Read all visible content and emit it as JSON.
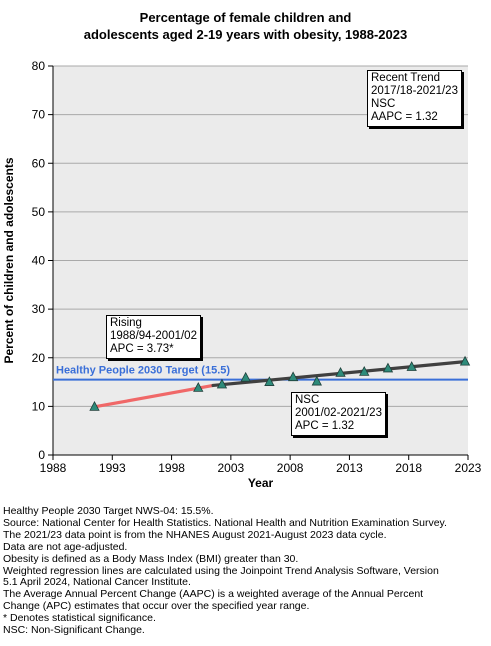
{
  "chart_data": {
    "type": "line",
    "title": "Percentage of female children and adolescents aged 2-19 years with obesity, 1988-2023",
    "title_lines": [
      "Percentage of female children and",
      "adolescents aged 2-19 years with obesity, 1988-2023"
    ],
    "xlabel": "Year",
    "ylabel": "Percent of children and adolescents",
    "xlim": [
      1988,
      2023
    ],
    "ylim": [
      0,
      80
    ],
    "x_ticks": [
      1988,
      1993,
      1998,
      2003,
      2008,
      2013,
      2018,
      2023
    ],
    "y_ticks": [
      0,
      10,
      20,
      30,
      40,
      50,
      60,
      70,
      80
    ],
    "grid": true,
    "observed": {
      "x": [
        1991.5,
        2000.25,
        2002.25,
        2004.25,
        2006.25,
        2008.25,
        2010.25,
        2012.25,
        2014.25,
        2016.25,
        2018.25,
        2022.75
      ],
      "y": [
        9.9,
        13.8,
        14.5,
        15.9,
        15.0,
        16.0,
        15.1,
        16.9,
        17.1,
        17.8,
        18.1,
        19.2
      ],
      "color": "#2e8b7a"
    },
    "segments": [
      {
        "x": [
          1991.5,
          2001.5
        ],
        "y": [
          9.9,
          14.3
        ],
        "color": "#f06868"
      },
      {
        "x": [
          2001.5,
          2022.75
        ],
        "y": [
          14.3,
          19.2
        ],
        "color": "#404040"
      }
    ],
    "target": {
      "value": 15.5,
      "label": "Healthy People 2030 Target (15.5)",
      "color": "#3a6fd8"
    },
    "annotations": [
      {
        "id": "rising",
        "lines": [
          "Rising",
          "1988/94-2001/02",
          "APC =  3.73*"
        ]
      },
      {
        "id": "nsc",
        "lines": [
          "NSC",
          "2001/02-2021/23",
          "APC =  1.32"
        ]
      },
      {
        "id": "recent",
        "lines": [
          "Recent Trend",
          "2017/18-2021/23",
          "NSC",
          "AAPC =  1.32"
        ]
      }
    ]
  },
  "notes": [
    "Healthy People 2030 Target NWS-04: 15.5%.",
    "Source: National Center for Health Statistics. National Health and Nutrition Examination Survey.",
    "The 2021/23 data point is from the NHANES August 2021-August 2023 data cycle.",
    "Data are not age-adjusted.",
    "Obesity is defined as a Body Mass Index (BMI) greater than 30.",
    "Weighted regression lines are calculated using the Joinpoint Trend Analysis Software, Version",
    "5.1 April 2024, National Cancer Institute.",
    "The Average Annual Percent Change (AAPC) is a weighted average of the Annual Percent",
    "Change (APC) estimates that occur over the specified year range.",
    "* Denotes statistical significance.",
    "NSC: Non-Significant Change."
  ]
}
